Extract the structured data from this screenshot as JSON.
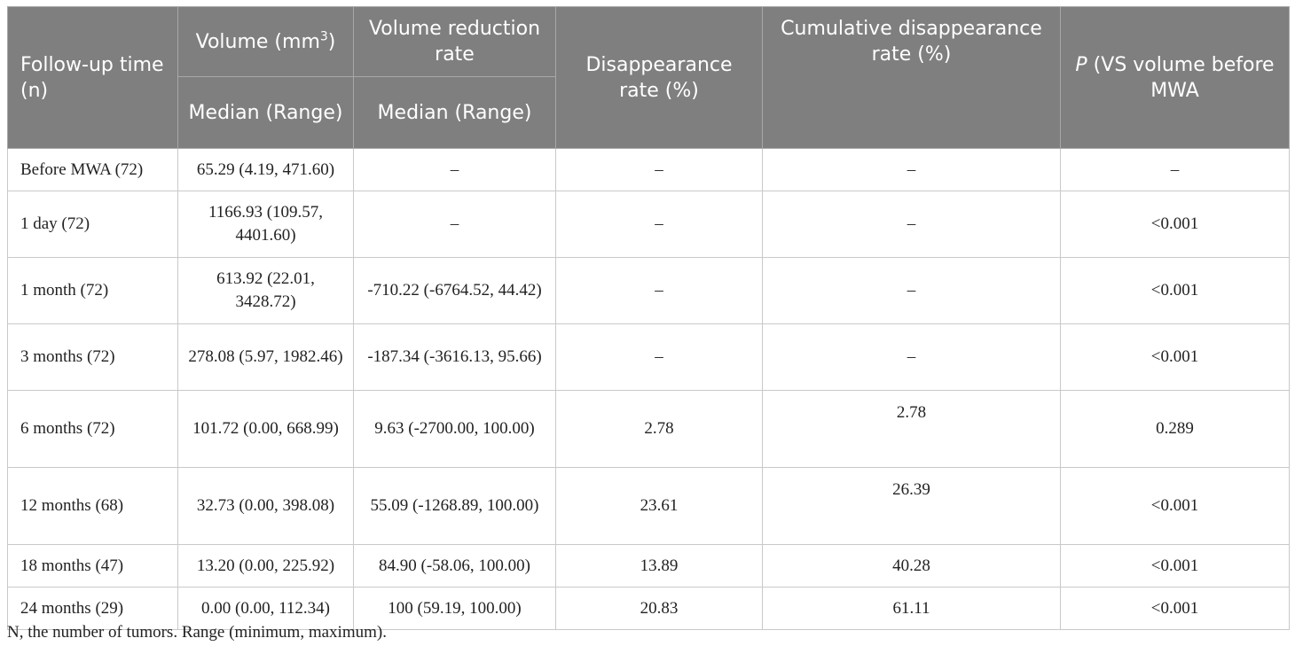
{
  "table": {
    "headers": {
      "followup": "Follow-up time (n)",
      "volume_prefix": "Volume (mm",
      "volume_sup": "3",
      "volume_suffix": ")",
      "volume_sub": "Median (Range)",
      "reduction": "Volume reduction rate",
      "reduction_sub": "Median (Range)",
      "disappearance": "Disappearance rate (%)",
      "cumulative": "Cumulative disappearance rate (%)",
      "p_italic": "P",
      "p_rest": " (VS volume before MWA"
    },
    "rows": [
      {
        "time": "Before MWA (72)",
        "volume": "65.29 (4.19, 471.60)",
        "reduction": "–",
        "disappearance": "–",
        "cumulative": "–",
        "p": "–"
      },
      {
        "time": "1 day (72)",
        "volume": "1166.93 (109.57, 4401.60)",
        "reduction": "–",
        "disappearance": "–",
        "cumulative": "–",
        "p": "<0.001"
      },
      {
        "time": "1 month (72)",
        "volume": "613.92 (22.01, 3428.72)",
        "reduction": "-710.22 (-6764.52, 44.42)",
        "disappearance": "–",
        "cumulative": "–",
        "p": "<0.001"
      },
      {
        "time": "3 months (72)",
        "volume": "278.08 (5.97, 1982.46)",
        "reduction": "-187.34 (-3616.13, 95.66)",
        "disappearance": "–",
        "cumulative": "–",
        "p": "<0.001"
      },
      {
        "time": "6 months (72)",
        "volume": "101.72 (0.00, 668.99)",
        "reduction": "9.63 (-2700.00, 100.00)",
        "disappearance": "2.78",
        "cumulative": "2.78",
        "p": "0.289"
      },
      {
        "time": "12 months (68)",
        "volume": "32.73 (0.00, 398.08)",
        "reduction": "55.09 (-1268.89, 100.00)",
        "disappearance": "23.61",
        "cumulative": "26.39",
        "p": "<0.001"
      },
      {
        "time": "18 months (47)",
        "volume": "13.20 (0.00, 225.92)",
        "reduction": "84.90 (-58.06, 100.00)",
        "disappearance": "13.89",
        "cumulative": "40.28",
        "p": "<0.001"
      },
      {
        "time": "24 months (29)",
        "volume": "0.00 (0.00, 112.34)",
        "reduction": "100 (59.19, 100.00)",
        "disappearance": "20.83",
        "cumulative": "61.11",
        "p": "<0.001"
      }
    ]
  },
  "footnote": "N, the number of tumors. Range (minimum, maximum).",
  "colors": {
    "header_bg": "#7f7f7f",
    "header_text": "#ffffff",
    "border": "#c9c9c9"
  }
}
